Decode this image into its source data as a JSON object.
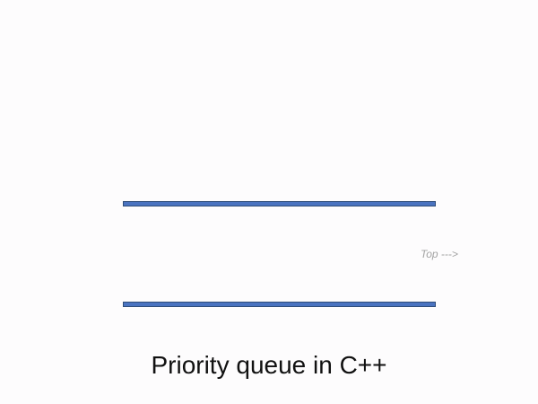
{
  "diagram": {
    "top_pointer_label": "Top --->",
    "caption": "Priority queue in C++",
    "colors": {
      "bar_fill": "#4a73c0",
      "background": "#fdfcfd"
    }
  }
}
